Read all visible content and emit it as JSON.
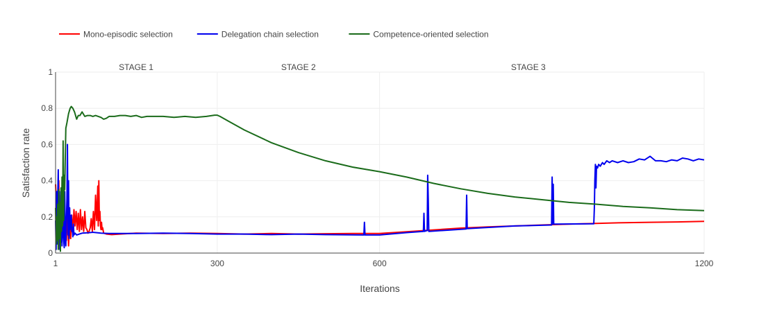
{
  "chart_data": {
    "type": "line",
    "xlabel": "Iterations",
    "ylabel": "Satisfaction rate",
    "xlim": [
      1,
      1200
    ],
    "ylim": [
      0,
      1
    ],
    "x_ticks": [
      "1",
      "300",
      "600",
      "1200"
    ],
    "x_tick_values": [
      1,
      300,
      600,
      1200
    ],
    "y_ticks": [
      "0",
      "0.2",
      "0.4",
      "0.6",
      "0.8",
      "1"
    ],
    "y_tick_values": [
      0,
      0.2,
      0.4,
      0.6,
      0.8,
      1
    ],
    "grid": true,
    "legend_position": "top-left",
    "annotations": [
      {
        "text": "STAGE 1",
        "x": 150
      },
      {
        "text": "STAGE 2",
        "x": 450
      },
      {
        "text": "STAGE 3",
        "x": 875
      }
    ],
    "stage_dividers": [
      300,
      600
    ],
    "series": [
      {
        "name": "Mono-episodic selection",
        "color": "#ff0000",
        "points": [
          [
            1,
            0.38
          ],
          [
            3,
            0.24
          ],
          [
            5,
            0.06
          ],
          [
            7,
            0.4
          ],
          [
            9,
            0.02
          ],
          [
            11,
            0.32
          ],
          [
            13,
            0.1
          ],
          [
            15,
            0.38
          ],
          [
            17,
            0.05
          ],
          [
            19,
            0.18
          ],
          [
            21,
            0.07
          ],
          [
            23,
            0.24
          ],
          [
            25,
            0.04
          ],
          [
            27,
            0.17
          ],
          [
            29,
            0.08
          ],
          [
            31,
            0.21
          ],
          [
            33,
            0.11
          ],
          [
            35,
            0.24
          ],
          [
            37,
            0.15
          ],
          [
            39,
            0.23
          ],
          [
            41,
            0.13
          ],
          [
            43,
            0.22
          ],
          [
            45,
            0.12
          ],
          [
            47,
            0.24
          ],
          [
            49,
            0.13
          ],
          [
            51,
            0.2
          ],
          [
            53,
            0.12
          ],
          [
            55,
            0.23
          ],
          [
            57,
            0.14
          ],
          [
            59,
            0.13
          ],
          [
            61,
            0.11
          ],
          [
            63,
            0.12
          ],
          [
            65,
            0.14
          ],
          [
            67,
            0.19
          ],
          [
            69,
            0.12
          ],
          [
            71,
            0.23
          ],
          [
            73,
            0.13
          ],
          [
            75,
            0.32
          ],
          [
            77,
            0.18
          ],
          [
            79,
            0.37
          ],
          [
            80,
            0.15
          ],
          [
            81,
            0.4
          ],
          [
            82,
            0.18
          ],
          [
            83,
            0.23
          ],
          [
            84,
            0.15
          ],
          [
            85,
            0.13
          ],
          [
            86,
            0.17
          ],
          [
            87,
            0.13
          ],
          [
            88,
            0.14
          ],
          [
            90,
            0.11
          ],
          [
            95,
            0.105
          ],
          [
            105,
            0.102
          ],
          [
            120,
            0.105
          ],
          [
            150,
            0.11
          ],
          [
            200,
            0.108
          ],
          [
            250,
            0.11
          ],
          [
            300,
            0.108
          ],
          [
            350,
            0.105
          ],
          [
            400,
            0.108
          ],
          [
            450,
            0.105
          ],
          [
            500,
            0.107
          ],
          [
            550,
            0.108
          ],
          [
            600,
            0.108
          ],
          [
            650,
            0.118
          ],
          [
            700,
            0.128
          ],
          [
            750,
            0.138
          ],
          [
            800,
            0.145
          ],
          [
            850,
            0.15
          ],
          [
            900,
            0.155
          ],
          [
            950,
            0.16
          ],
          [
            1000,
            0.164
          ],
          [
            1050,
            0.168
          ],
          [
            1100,
            0.17
          ],
          [
            1150,
            0.172
          ],
          [
            1200,
            0.175
          ]
        ]
      },
      {
        "name": "Delegation chain selection",
        "color": "#0000ee",
        "points": [
          [
            1,
            0.18
          ],
          [
            2,
            0.02
          ],
          [
            3,
            0.34
          ],
          [
            4,
            0.05
          ],
          [
            5,
            0.3
          ],
          [
            6,
            0.46
          ],
          [
            7,
            0.08
          ],
          [
            8,
            0.34
          ],
          [
            9,
            0.02
          ],
          [
            10,
            0.28
          ],
          [
            11,
            0.06
          ],
          [
            12,
            0.35
          ],
          [
            13,
            0.04
          ],
          [
            14,
            0.22
          ],
          [
            16,
            0.07
          ],
          [
            17,
            0.03
          ],
          [
            18,
            0.34
          ],
          [
            19,
            0.12
          ],
          [
            20,
            0.04
          ],
          [
            21,
            0.18
          ],
          [
            22,
            0.3
          ],
          [
            23,
            0.6
          ],
          [
            24,
            0.1
          ],
          [
            25,
            0.4
          ],
          [
            26,
            0.08
          ],
          [
            27,
            0.25
          ],
          [
            28,
            0.13
          ],
          [
            30,
            0.21
          ],
          [
            31,
            0.12
          ],
          [
            32,
            0.14
          ],
          [
            33,
            0.09
          ],
          [
            34,
            0.16
          ],
          [
            35,
            0.1
          ],
          [
            37,
            0.11
          ],
          [
            40,
            0.1
          ],
          [
            45,
            0.105
          ],
          [
            50,
            0.11
          ],
          [
            60,
            0.112
          ],
          [
            70,
            0.115
          ],
          [
            85,
            0.11
          ],
          [
            100,
            0.108
          ],
          [
            150,
            0.108
          ],
          [
            200,
            0.11
          ],
          [
            250,
            0.108
          ],
          [
            300,
            0.105
          ],
          [
            350,
            0.105
          ],
          [
            400,
            0.102
          ],
          [
            450,
            0.105
          ],
          [
            500,
            0.102
          ],
          [
            571,
            0.1
          ],
          [
            572,
            0.17
          ],
          [
            573,
            0.1
          ],
          [
            600,
            0.1
          ],
          [
            650,
            0.113
          ],
          [
            681,
            0.12
          ],
          [
            682,
            0.22
          ],
          [
            683,
            0.12
          ],
          [
            688,
            0.125
          ],
          [
            689,
            0.43
          ],
          [
            690,
            0.3
          ],
          [
            691,
            0.12
          ],
          [
            760,
            0.133
          ],
          [
            761,
            0.32
          ],
          [
            762,
            0.135
          ],
          [
            850,
            0.15
          ],
          [
            918,
            0.155
          ],
          [
            919,
            0.42
          ],
          [
            920,
            0.16
          ],
          [
            921,
            0.38
          ],
          [
            922,
            0.16
          ],
          [
            996,
            0.162
          ],
          [
            997,
            0.25
          ],
          [
            998,
            0.4
          ],
          [
            999,
            0.49
          ],
          [
            1000,
            0.36
          ],
          [
            1001,
            0.48
          ],
          [
            1003,
            0.47
          ],
          [
            1005,
            0.49
          ],
          [
            1008,
            0.48
          ],
          [
            1012,
            0.5
          ],
          [
            1015,
            0.49
          ],
          [
            1020,
            0.51
          ],
          [
            1025,
            0.5
          ],
          [
            1030,
            0.51
          ],
          [
            1040,
            0.5
          ],
          [
            1050,
            0.51
          ],
          [
            1060,
            0.5
          ],
          [
            1070,
            0.505
          ],
          [
            1080,
            0.52
          ],
          [
            1090,
            0.515
          ],
          [
            1100,
            0.535
          ],
          [
            1110,
            0.51
          ],
          [
            1120,
            0.51
          ],
          [
            1130,
            0.505
          ],
          [
            1140,
            0.515
          ],
          [
            1150,
            0.51
          ],
          [
            1160,
            0.525
          ],
          [
            1170,
            0.52
          ],
          [
            1180,
            0.51
          ],
          [
            1190,
            0.52
          ],
          [
            1200,
            0.515
          ]
        ]
      },
      {
        "name": "Competence-oriented selection",
        "color": "#1a6b1a",
        "points": [
          [
            1,
            0.25
          ],
          [
            2,
            0.05
          ],
          [
            3,
            0.2
          ],
          [
            4,
            0.07
          ],
          [
            5,
            0.27
          ],
          [
            6,
            0.02
          ],
          [
            7,
            0.35
          ],
          [
            8,
            0.08
          ],
          [
            9,
            0.28
          ],
          [
            10,
            0.01
          ],
          [
            11,
            0.36
          ],
          [
            12,
            0.12
          ],
          [
            13,
            0.42
          ],
          [
            14,
            0.15
          ],
          [
            15,
            0.62
          ],
          [
            16,
            0.18
          ],
          [
            17,
            0.43
          ],
          [
            18,
            0.35
          ],
          [
            19,
            0.53
          ],
          [
            20,
            0.69
          ],
          [
            22,
            0.72
          ],
          [
            25,
            0.77
          ],
          [
            28,
            0.8
          ],
          [
            30,
            0.81
          ],
          [
            33,
            0.8
          ],
          [
            36,
            0.78
          ],
          [
            40,
            0.74
          ],
          [
            43,
            0.76
          ],
          [
            46,
            0.76
          ],
          [
            50,
            0.78
          ],
          [
            55,
            0.755
          ],
          [
            60,
            0.76
          ],
          [
            65,
            0.76
          ],
          [
            70,
            0.755
          ],
          [
            75,
            0.76
          ],
          [
            80,
            0.755
          ],
          [
            85,
            0.75
          ],
          [
            90,
            0.74
          ],
          [
            95,
            0.745
          ],
          [
            100,
            0.755
          ],
          [
            110,
            0.755
          ],
          [
            120,
            0.76
          ],
          [
            130,
            0.76
          ],
          [
            140,
            0.755
          ],
          [
            150,
            0.76
          ],
          [
            160,
            0.75
          ],
          [
            170,
            0.755
          ],
          [
            180,
            0.755
          ],
          [
            200,
            0.755
          ],
          [
            220,
            0.75
          ],
          [
            240,
            0.755
          ],
          [
            260,
            0.75
          ],
          [
            280,
            0.755
          ],
          [
            295,
            0.762
          ],
          [
            300,
            0.762
          ],
          [
            305,
            0.755
          ],
          [
            320,
            0.73
          ],
          [
            350,
            0.68
          ],
          [
            400,
            0.61
          ],
          [
            450,
            0.555
          ],
          [
            500,
            0.51
          ],
          [
            550,
            0.475
          ],
          [
            600,
            0.45
          ],
          [
            650,
            0.42
          ],
          [
            700,
            0.385
          ],
          [
            750,
            0.355
          ],
          [
            800,
            0.33
          ],
          [
            850,
            0.31
          ],
          [
            900,
            0.295
          ],
          [
            950,
            0.28
          ],
          [
            1000,
            0.27
          ],
          [
            1050,
            0.258
          ],
          [
            1100,
            0.25
          ],
          [
            1150,
            0.24
          ],
          [
            1200,
            0.235
          ]
        ]
      }
    ]
  }
}
